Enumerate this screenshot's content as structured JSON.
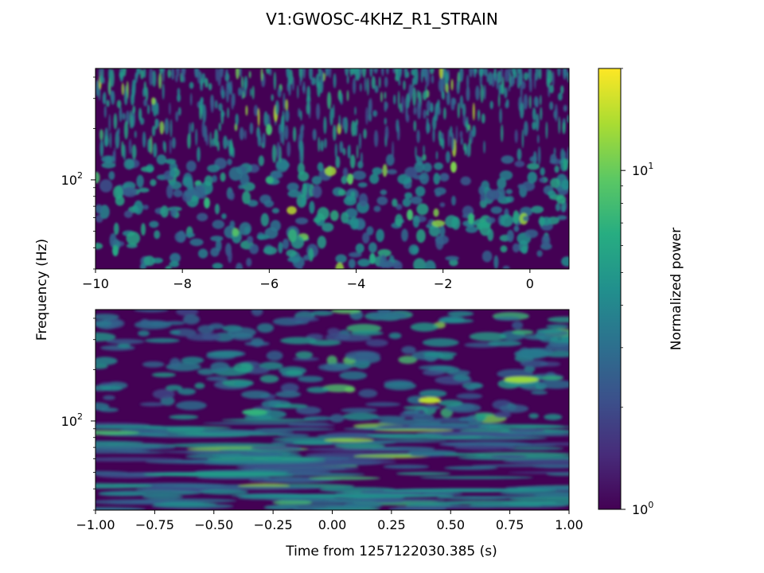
{
  "figure": {
    "title": "V1:GWOSC-4KHZ_R1_STRAIN",
    "ylabel": "Frequency (Hz)",
    "xlabel": "Time from 1257122030.385 (s)"
  },
  "colorbar": {
    "label": "Normalized power",
    "scale": "log",
    "range": [
      1,
      20
    ],
    "tick_labels": [
      {
        "value": 1,
        "base": "10",
        "exp": "0"
      },
      {
        "value": 10,
        "base": "10",
        "exp": "1"
      }
    ],
    "colormap": "viridis",
    "stops": [
      "#440154",
      "#472c7a",
      "#3b518b",
      "#2c718e",
      "#21908d",
      "#27ad81",
      "#5cc863",
      "#aadc32",
      "#fde725"
    ]
  },
  "chart_data": [
    {
      "type": "heatmap",
      "name": "top-panel",
      "xlim": [
        -10,
        0.9
      ],
      "x_ticks": [
        -10,
        -8,
        -6,
        -4,
        -2,
        0
      ],
      "x_tick_labels": [
        "−10",
        "−8",
        "−6",
        "−4",
        "−2",
        "0"
      ],
      "y_scale": "log",
      "ylim": [
        30,
        450
      ],
      "y_tick_labels": [
        {
          "value": 100,
          "base": "10",
          "exp": "2"
        }
      ],
      "z_scale": "log",
      "texture": "dense short vertical streaks at high frequency, scattered blobs below 100 Hz; brightest spots near t=-4 and t=-2, ~150-200 Hz"
    },
    {
      "type": "heatmap",
      "name": "bottom-panel",
      "xlim": [
        -1,
        1
      ],
      "x_ticks": [
        -1,
        -0.75,
        -0.5,
        -0.25,
        0,
        0.25,
        0.5,
        0.75,
        1
      ],
      "x_tick_labels": [
        "−1.00",
        "−0.75",
        "−0.50",
        "−0.25",
        "0.00",
        "0.25",
        "0.50",
        "0.75",
        "1.00"
      ],
      "y_scale": "log",
      "ylim": [
        30,
        450
      ],
      "y_tick_labels": [
        {
          "value": 100,
          "base": "10",
          "exp": "2"
        }
      ],
      "z_scale": "log",
      "texture": "horizontal streaks, longer at low frequency; bright spots near t=0.4 at ~110 Hz and t=0.8 at ~200 Hz"
    }
  ]
}
